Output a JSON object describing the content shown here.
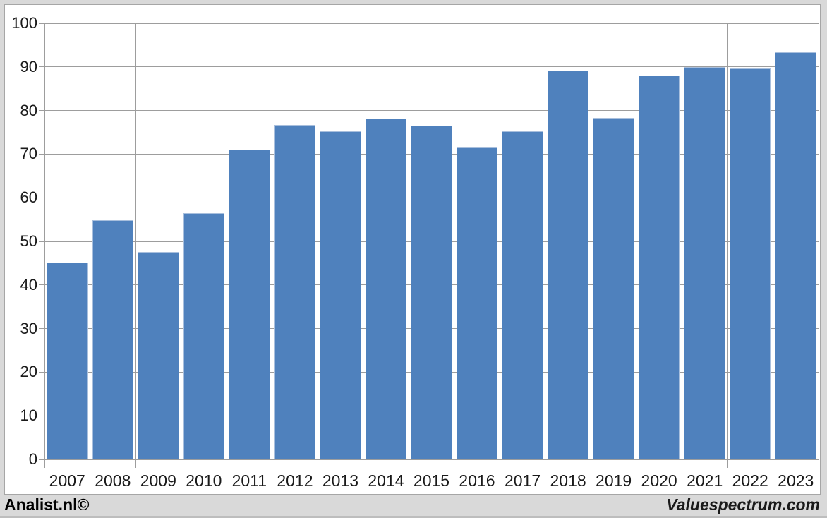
{
  "chart_data": {
    "type": "bar",
    "title": "",
    "categories": [
      "2007",
      "2008",
      "2009",
      "2010",
      "2011",
      "2012",
      "2013",
      "2014",
      "2015",
      "2016",
      "2017",
      "2018",
      "2019",
      "2020",
      "2021",
      "2022",
      "2023"
    ],
    "values": [
      45.2,
      54.8,
      47.6,
      56.5,
      71.0,
      76.7,
      75.3,
      78.1,
      76.5,
      71.5,
      75.3,
      89.2,
      78.3,
      88.1,
      90.0,
      89.7,
      93.3
    ],
    "xlabel": "",
    "ylabel": "",
    "ylim": [
      0,
      100
    ],
    "ytick_step": 10,
    "grid": true,
    "legend": "none",
    "bar_color": "#4f81bd",
    "bar_border_color": "#a8bfdd",
    "gridline_color": "#9d9d9d",
    "axis_text_color": "#1a1a1a"
  },
  "footer": {
    "left_label": "Analist.nl©",
    "right_label": "Valuespectrum.com"
  }
}
